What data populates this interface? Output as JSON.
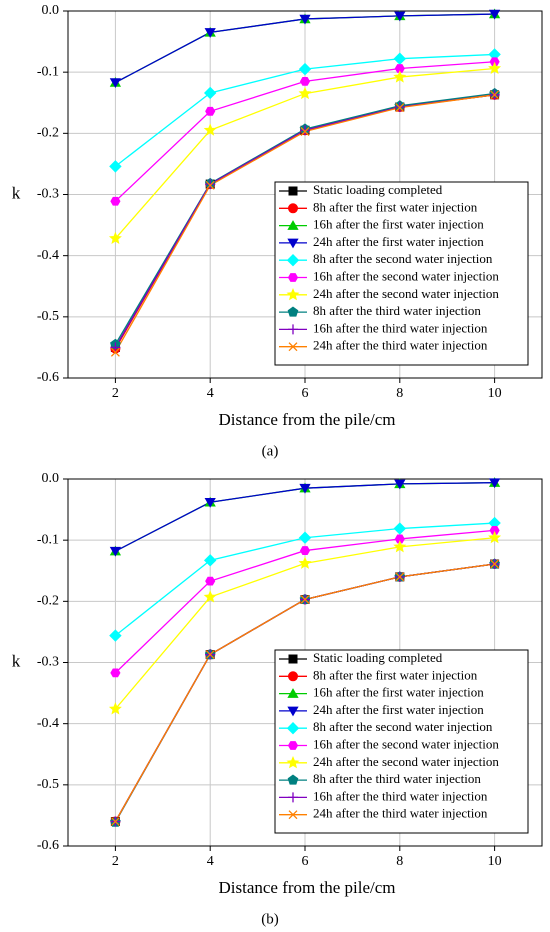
{
  "chart_data": [
    {
      "type": "line",
      "panel_label": "(a)",
      "x_label": "Distance from the pile/cm",
      "y_label": "k",
      "x": [
        2,
        4,
        6,
        8,
        10
      ],
      "xlim": [
        1,
        11
      ],
      "xticks": [
        2,
        4,
        6,
        8,
        10
      ],
      "ylim": [
        -0.6,
        0
      ],
      "yticks": [
        {
          "value": 0,
          "label": "0.0"
        },
        -0.1,
        -0.2,
        -0.3,
        -0.4,
        -0.5,
        -0.6
      ],
      "grid": true,
      "series": [
        {
          "name": "Static loading completed",
          "color": "#000000",
          "marker": "square",
          "values": [
            -0.55,
            -0.283,
            -0.195,
            -0.157,
            -0.137
          ]
        },
        {
          "name": "8h after the first water injection",
          "color": "#ff0000",
          "marker": "circle",
          "values": [
            -0.552,
            -0.283,
            -0.195,
            -0.157,
            -0.137
          ]
        },
        {
          "name": "16h after the first water injection",
          "color": "#00cc00",
          "marker": "triangle-up",
          "values": [
            -0.117,
            -0.035,
            -0.013,
            -0.008,
            -0.005
          ]
        },
        {
          "name": "24h after the first water injection",
          "color": "#0000cc",
          "marker": "triangle-down",
          "values": [
            -0.117,
            -0.035,
            -0.013,
            -0.008,
            -0.005
          ]
        },
        {
          "name": "8h after the second water injection",
          "color": "#00ffff",
          "marker": "diamond",
          "values": [
            -0.254,
            -0.134,
            -0.095,
            -0.078,
            -0.071
          ]
        },
        {
          "name": "16h after the second water injection",
          "color": "#ff00ff",
          "marker": "hexagon",
          "values": [
            -0.311,
            -0.164,
            -0.115,
            -0.094,
            -0.083
          ]
        },
        {
          "name": "24h after the second water injection",
          "color": "#ffff00",
          "marker": "star",
          "values": [
            -0.372,
            -0.195,
            -0.135,
            -0.108,
            -0.094
          ]
        },
        {
          "name": "8h after the third water injection",
          "color": "#008080",
          "marker": "pentagon",
          "values": [
            -0.545,
            -0.282,
            -0.193,
            -0.155,
            -0.135
          ]
        },
        {
          "name": "16h after the third water injection",
          "color": "#8000c0",
          "marker": "plus",
          "values": [
            -0.55,
            -0.283,
            -0.195,
            -0.157,
            -0.137
          ]
        },
        {
          "name": "24h after the third water injection",
          "color": "#ff8000",
          "marker": "x",
          "values": [
            -0.558,
            -0.285,
            -0.197,
            -0.158,
            -0.137
          ]
        }
      ]
    },
    {
      "type": "line",
      "panel_label": "(b)",
      "x_label": "Distance from the pile/cm",
      "y_label": "k",
      "x": [
        2,
        4,
        6,
        8,
        10
      ],
      "xlim": [
        1,
        11
      ],
      "xticks": [
        2,
        4,
        6,
        8,
        10
      ],
      "ylim": [
        -0.6,
        0
      ],
      "yticks": [
        {
          "value": 0,
          "label": "0.0"
        },
        -0.1,
        -0.2,
        -0.3,
        -0.4,
        -0.5,
        -0.6
      ],
      "grid": true,
      "series": [
        {
          "name": "Static loading completed",
          "color": "#000000",
          "marker": "square",
          "values": [
            -0.56,
            -0.287,
            -0.197,
            -0.16,
            -0.139
          ]
        },
        {
          "name": "8h after the first water injection",
          "color": "#ff0000",
          "marker": "circle",
          "values": [
            -0.56,
            -0.287,
            -0.197,
            -0.16,
            -0.139
          ]
        },
        {
          "name": "16h after the first water injection",
          "color": "#00cc00",
          "marker": "triangle-up",
          "values": [
            -0.118,
            -0.038,
            -0.015,
            -0.008,
            -0.006
          ]
        },
        {
          "name": "24h after the first water injection",
          "color": "#0000cc",
          "marker": "triangle-down",
          "values": [
            -0.118,
            -0.038,
            -0.015,
            -0.008,
            -0.006
          ]
        },
        {
          "name": "8h after the second water injection",
          "color": "#00ffff",
          "marker": "diamond",
          "values": [
            -0.256,
            -0.133,
            -0.096,
            -0.081,
            -0.072
          ]
        },
        {
          "name": "16h after the second water injection",
          "color": "#ff00ff",
          "marker": "hexagon",
          "values": [
            -0.317,
            -0.167,
            -0.117,
            -0.098,
            -0.084
          ]
        },
        {
          "name": "24h after the second water injection",
          "color": "#ffff00",
          "marker": "star",
          "values": [
            -0.376,
            -0.193,
            -0.138,
            -0.111,
            -0.096
          ]
        },
        {
          "name": "8h after the third water injection",
          "color": "#008080",
          "marker": "pentagon",
          "values": [
            -0.561,
            -0.287,
            -0.197,
            -0.16,
            -0.139
          ]
        },
        {
          "name": "16h after the third water injection",
          "color": "#8000c0",
          "marker": "plus",
          "values": [
            -0.56,
            -0.287,
            -0.197,
            -0.16,
            -0.139
          ]
        },
        {
          "name": "24h after the third water injection",
          "color": "#ff8000",
          "marker": "x",
          "values": [
            -0.56,
            -0.287,
            -0.197,
            -0.16,
            -0.139
          ]
        }
      ]
    }
  ]
}
